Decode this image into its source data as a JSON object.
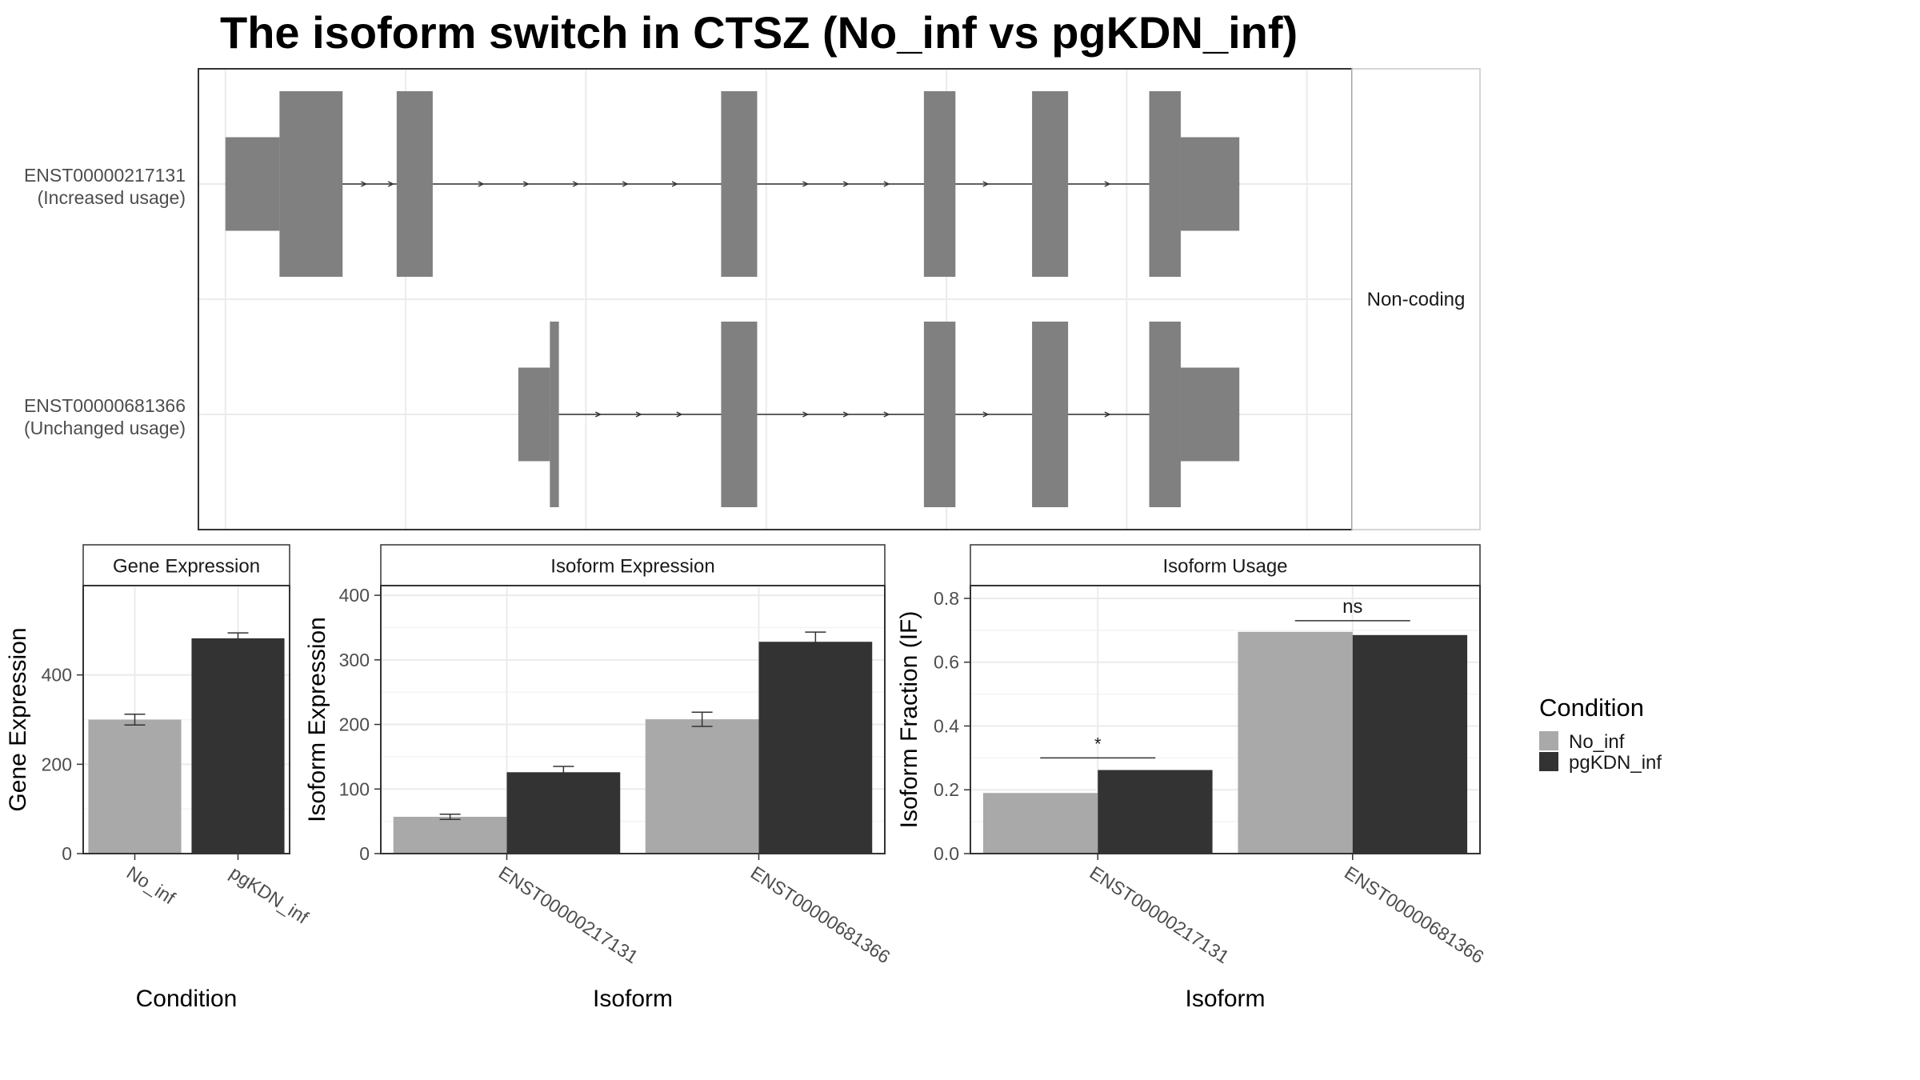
{
  "title": "The isoform switch in CTSZ (No_inf vs pgKDN_inf)",
  "colors": {
    "No_inf": "#a9a9a9",
    "pgKDN_inf": "#333333",
    "exon": "#808080",
    "grid": "#ebebeb",
    "panel_border": "#333333"
  },
  "chart_data": [
    {
      "type": "other",
      "panel": "gene-structure",
      "strip_label": "Non-coding",
      "transcripts": [
        {
          "id": "ENST00000217131",
          "usage": "(Increased usage)",
          "exons": [
            {
              "start": 0.0,
              "end": 6.0,
              "coding": false
            },
            {
              "start": 6.0,
              "end": 13.0,
              "coding": true
            },
            {
              "start": 19.0,
              "end": 23.0,
              "coding": true
            },
            {
              "start": 55.0,
              "end": 59.0,
              "coding": true
            },
            {
              "start": 77.5,
              "end": 81.0,
              "coding": true
            },
            {
              "start": 89.5,
              "end": 93.5,
              "coding": true
            },
            {
              "start": 102.5,
              "end": 106.0,
              "coding": true
            },
            {
              "start": 106.0,
              "end": 112.5,
              "coding": false
            }
          ],
          "arrows": [
            15.5,
            18.5,
            28.5,
            33.5,
            39.0,
            44.5,
            50.0,
            64.5,
            69.0,
            73.5,
            84.5,
            98.0
          ]
        },
        {
          "id": "ENST00000681366",
          "usage": "(Unchanged usage)",
          "exons": [
            {
              "start": 32.5,
              "end": 36.0,
              "coding": false
            },
            {
              "start": 36.0,
              "end": 37.0,
              "coding": true
            },
            {
              "start": 55.0,
              "end": 59.0,
              "coding": true
            },
            {
              "start": 77.5,
              "end": 81.0,
              "coding": true
            },
            {
              "start": 89.5,
              "end": 93.5,
              "coding": true
            },
            {
              "start": 102.5,
              "end": 106.0,
              "coding": true
            },
            {
              "start": 106.0,
              "end": 112.5,
              "coding": false
            }
          ],
          "arrows": [
            41.5,
            46.0,
            50.5,
            64.5,
            69.0,
            73.5,
            84.5,
            98.0
          ]
        }
      ]
    },
    {
      "type": "bar",
      "panel": "gene-expression",
      "strip": "Gene Expression",
      "xlabel": "Condition",
      "ylabel": "Gene Expression",
      "ylim": [
        0,
        600
      ],
      "yticks": [
        0,
        200,
        400
      ],
      "categories": [
        "No_inf",
        "pgKDN_inf"
      ],
      "values": [
        300,
        482
      ],
      "errors": [
        12,
        12
      ]
    },
    {
      "type": "bar",
      "panel": "isoform-expression",
      "strip": "Isoform Expression",
      "xlabel": "Isoform",
      "ylabel": "Isoform Expression",
      "ylim": [
        0,
        415
      ],
      "yticks": [
        0,
        100,
        200,
        300,
        400
      ],
      "categories": [
        "ENST00000217131",
        "ENST00000681366"
      ],
      "series": [
        {
          "name": "No_inf",
          "values": [
            57,
            208
          ],
          "errors": [
            4,
            11
          ]
        },
        {
          "name": "pgKDN_inf",
          "values": [
            126,
            328
          ],
          "errors": [
            9,
            15
          ]
        }
      ]
    },
    {
      "type": "bar",
      "panel": "isoform-usage",
      "strip": "Isoform Usage",
      "xlabel": "Isoform",
      "ylabel": "Isoform Fraction (IF)",
      "ylim": [
        0,
        0.84
      ],
      "yticks": [
        0.0,
        0.2,
        0.4,
        0.6,
        0.8
      ],
      "ytick_labels": [
        "0.0",
        "0.2",
        "0.4",
        "0.6",
        "0.8"
      ],
      "categories": [
        "ENST00000217131",
        "ENST00000681366"
      ],
      "series": [
        {
          "name": "No_inf",
          "values": [
            0.19,
            0.695
          ]
        },
        {
          "name": "pgKDN_inf",
          "values": [
            0.262,
            0.685
          ]
        }
      ],
      "significance": [
        {
          "label": "*",
          "y": 0.3
        },
        {
          "label": "ns",
          "y": 0.73
        }
      ]
    }
  ],
  "legend": {
    "title": "Condition",
    "entries": [
      "No_inf",
      "pgKDN_inf"
    ]
  }
}
